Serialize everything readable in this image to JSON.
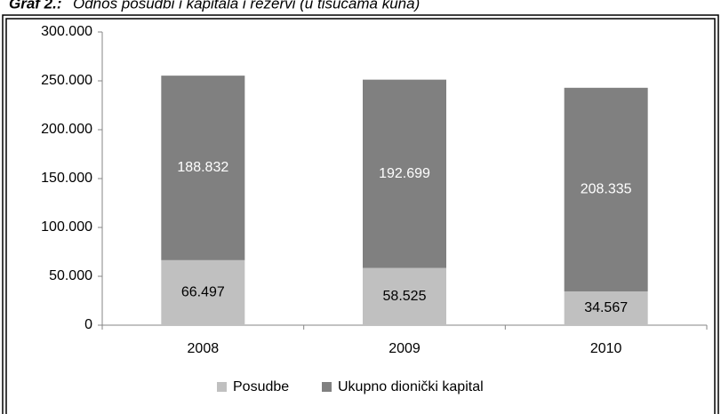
{
  "chart_data": {
    "type": "stacked-bar",
    "title_prefix": "Graf 2.:",
    "title": "Odnos posudbi i kapitala i rezervi (u tisućama kuna)",
    "categories": [
      "2008",
      "2009",
      "2010"
    ],
    "series": [
      {
        "name": "Posudbe",
        "color": "#c0c0c0",
        "values": [
          66497,
          58525,
          34567
        ],
        "value_labels": [
          "66.497",
          "58.525",
          "34.567"
        ]
      },
      {
        "name": "Ukupno dionički kapital",
        "color": "#808080",
        "values": [
          188832,
          192699,
          208335
        ],
        "value_labels": [
          "188.832",
          "192.699",
          "208.335"
        ]
      }
    ],
    "ylim": [
      0,
      300000
    ],
    "yticks": [
      0,
      {
        "value": 50000,
        "label": "50.000"
      },
      {
        "value": 100000,
        "label": "100.000"
      },
      {
        "value": 150000,
        "label": "150.000"
      },
      {
        "value": 200000,
        "label": "200.000"
      },
      {
        "value": 250000,
        "label": "250.000"
      },
      {
        "value": 300000,
        "label": "300.000"
      }
    ],
    "legend": "bottom"
  }
}
